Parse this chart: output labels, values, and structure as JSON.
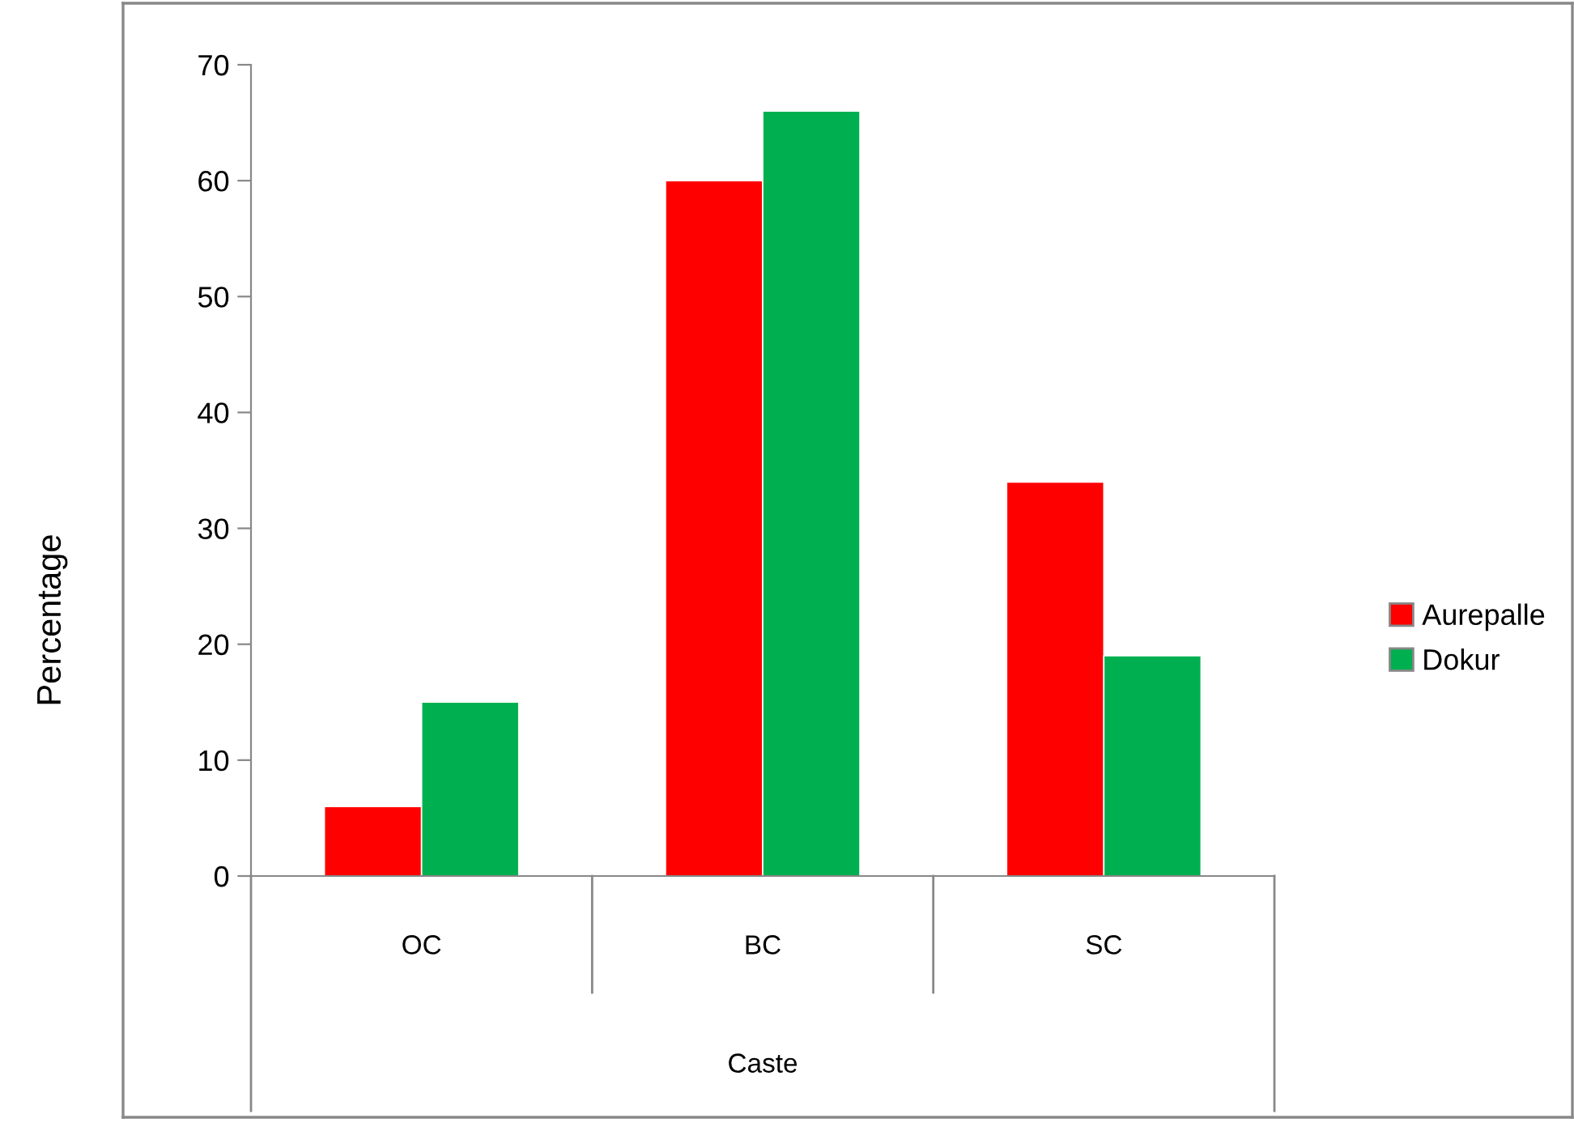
{
  "chart_data": {
    "type": "bar",
    "xlabel": "Caste",
    "ylabel": "Percentage",
    "categories": [
      "OC",
      "BC",
      "SC"
    ],
    "series": [
      {
        "name": "Aurepalle",
        "color": "#ff0000",
        "values": [
          6,
          60,
          34
        ]
      },
      {
        "name": "Dokur",
        "color": "#00b050",
        "values": [
          15,
          66,
          19
        ]
      }
    ],
    "ylim": [
      0,
      70
    ],
    "yticks": [
      0,
      10,
      20,
      30,
      40,
      50,
      60,
      70
    ],
    "grid": false,
    "legend": "right"
  }
}
